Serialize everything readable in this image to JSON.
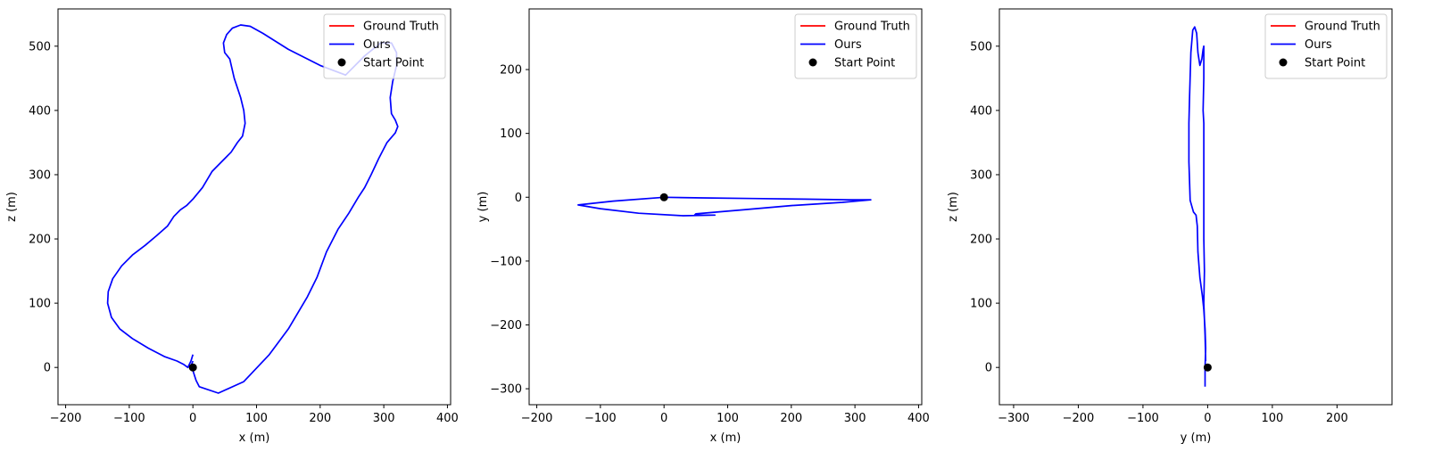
{
  "chart_data": [
    {
      "type": "line",
      "xlabel": "x (m)",
      "ylabel": "z (m)",
      "xlim": [
        -212,
        405
      ],
      "ylim": [
        -58,
        558
      ],
      "xticks": [
        -200,
        -100,
        0,
        100,
        200,
        300,
        400
      ],
      "yticks": [
        0,
        100,
        200,
        300,
        400,
        500
      ],
      "grid": false,
      "legend_position": "top-right",
      "legend": [
        "Ground Truth",
        "Ours",
        "Start Point"
      ],
      "series": [
        {
          "name": "Ground Truth",
          "color": "#ff0000",
          "x": [],
          "y": []
        },
        {
          "name": "Ours",
          "color": "#0000ff",
          "x": [
            0,
            -3,
            -8,
            -15,
            -25,
            -45,
            -70,
            -95,
            -115,
            -128,
            -134,
            -133,
            -126,
            -112,
            -95,
            -75,
            -57,
            -40,
            -30,
            -20,
            -10,
            0,
            15,
            30,
            45,
            60,
            70,
            78,
            82,
            80,
            75,
            65,
            58,
            50,
            48,
            53,
            62,
            75,
            90,
            110,
            150,
            200,
            240,
            270,
            295,
            312,
            320,
            320,
            314,
            310,
            312,
            318,
            322,
            318,
            305,
            292,
            280,
            270,
            260,
            245,
            228,
            210,
            195,
            180,
            168,
            150,
            120,
            80,
            40,
            10,
            5,
            0,
            -2,
            0
          ],
          "y": [
            20,
            10,
            0,
            5,
            10,
            17,
            30,
            45,
            60,
            78,
            100,
            118,
            138,
            158,
            175,
            190,
            205,
            220,
            235,
            245,
            252,
            262,
            280,
            305,
            320,
            335,
            350,
            360,
            380,
            400,
            420,
            450,
            480,
            490,
            505,
            518,
            528,
            533,
            531,
            520,
            495,
            470,
            455,
            485,
            505,
            505,
            490,
            470,
            445,
            420,
            395,
            385,
            375,
            365,
            350,
            325,
            300,
            280,
            265,
            240,
            215,
            180,
            140,
            110,
            90,
            60,
            20,
            -22,
            -40,
            -30,
            -20,
            -5,
            5,
            10
          ]
        },
        {
          "name": "Start Point",
          "color": "#000000",
          "marker": "circle",
          "x": [
            0
          ],
          "y": [
            0
          ]
        }
      ]
    },
    {
      "type": "line",
      "xlabel": "x (m)",
      "ylabel": "y (m)",
      "xlim": [
        -212,
        405
      ],
      "ylim": [
        -325,
        295
      ],
      "xticks": [
        -200,
        -100,
        0,
        100,
        200,
        300,
        400
      ],
      "yticks": [
        -300,
        -200,
        -100,
        0,
        100,
        200
      ],
      "grid": false,
      "legend_position": "top-right",
      "legend": [
        "Ground Truth",
        "Ours",
        "Start Point"
      ],
      "series": [
        {
          "name": "Ground Truth",
          "color": "#ff0000",
          "x": [],
          "y": []
        },
        {
          "name": "Ours",
          "color": "#0000ff",
          "x": [
            0,
            60,
            140,
            220,
            290,
            325,
            280,
            200,
            120,
            50,
            48,
            80,
            30,
            -40,
            -100,
            -135,
            -80,
            0
          ],
          "y": [
            0,
            -1,
            -2,
            -3,
            -4,
            -4,
            -8,
            -13,
            -20,
            -26,
            -28,
            -28,
            -29,
            -25,
            -18,
            -12,
            -6,
            0
          ]
        },
        {
          "name": "Start Point",
          "color": "#000000",
          "marker": "circle",
          "x": [
            0
          ],
          "y": [
            0
          ]
        }
      ]
    },
    {
      "type": "line",
      "xlabel": "y (m)",
      "ylabel": "z (m)",
      "xlim": [
        -322,
        285
      ],
      "ylim": [
        -58,
        558
      ],
      "xticks": [
        -300,
        -200,
        -100,
        0,
        100,
        200
      ],
      "yticks": [
        0,
        100,
        200,
        300,
        400,
        500
      ],
      "grid": false,
      "legend_position": "top-right",
      "legend": [
        "Ground Truth",
        "Ours",
        "Start Point"
      ],
      "series": [
        {
          "name": "Ground Truth",
          "color": "#ff0000",
          "x": [],
          "y": []
        },
        {
          "name": "Ours",
          "color": "#0000ff",
          "x": [
            -4,
            -4,
            -3,
            -4,
            -6,
            -8,
            -12,
            -15,
            -16,
            -18,
            -22,
            -27,
            -28,
            -29,
            -29,
            -28,
            -26,
            -23,
            -20,
            -17,
            -15,
            -12,
            -9,
            -7,
            -6,
            -6,
            -7,
            -6,
            -6,
            -6,
            -5,
            -6,
            -4,
            -3
          ],
          "y": [
            -30,
            0,
            30,
            60,
            90,
            110,
            140,
            180,
            220,
            237,
            242,
            260,
            290,
            320,
            380,
            420,
            490,
            525,
            530,
            520,
            490,
            470,
            480,
            495,
            500,
            450,
            400,
            380,
            300,
            200,
            150,
            100,
            50,
            10
          ]
        },
        {
          "name": "Start Point",
          "color": "#000000",
          "marker": "circle",
          "x": [
            0
          ],
          "y": [
            0
          ]
        }
      ]
    }
  ]
}
